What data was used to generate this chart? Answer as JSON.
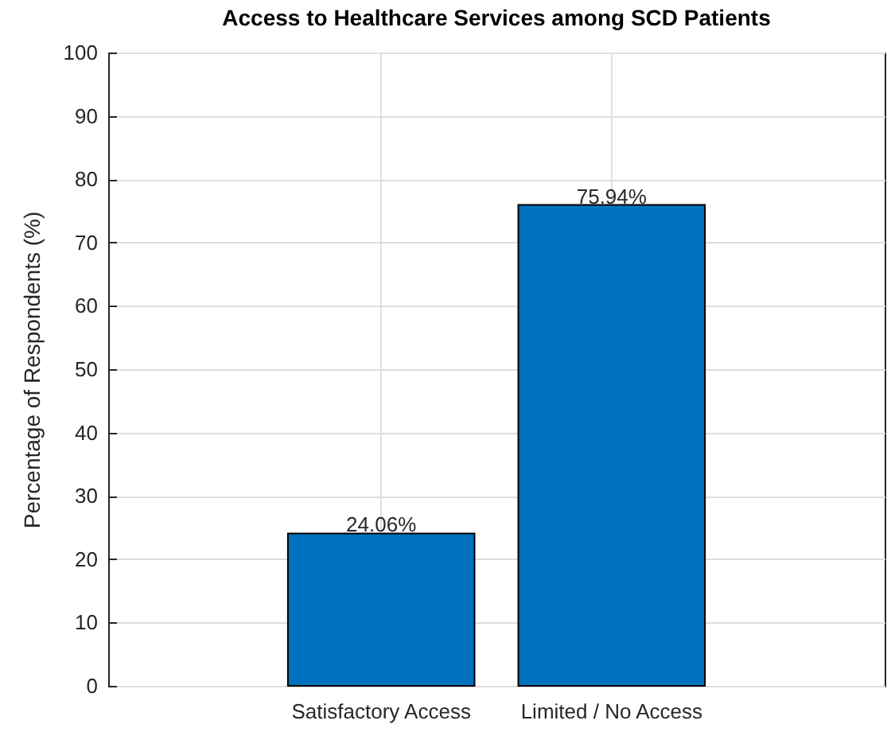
{
  "chart_data": {
    "type": "bar",
    "title": "Access to Healthcare Services among SCD Patients",
    "ylabel": "Percentage of Respondents (%)",
    "categories": [
      "Satisfactory Access",
      "Limited / No Access"
    ],
    "values": [
      24.06,
      75.94
    ],
    "color": "#0072bd",
    "value_labels": [
      "24.06%",
      "75.94%"
    ],
    "ylim": [
      0,
      100
    ],
    "yticks": [
      0,
      10,
      20,
      30,
      40,
      50,
      60,
      70,
      80,
      90,
      100
    ],
    "grid": true
  }
}
